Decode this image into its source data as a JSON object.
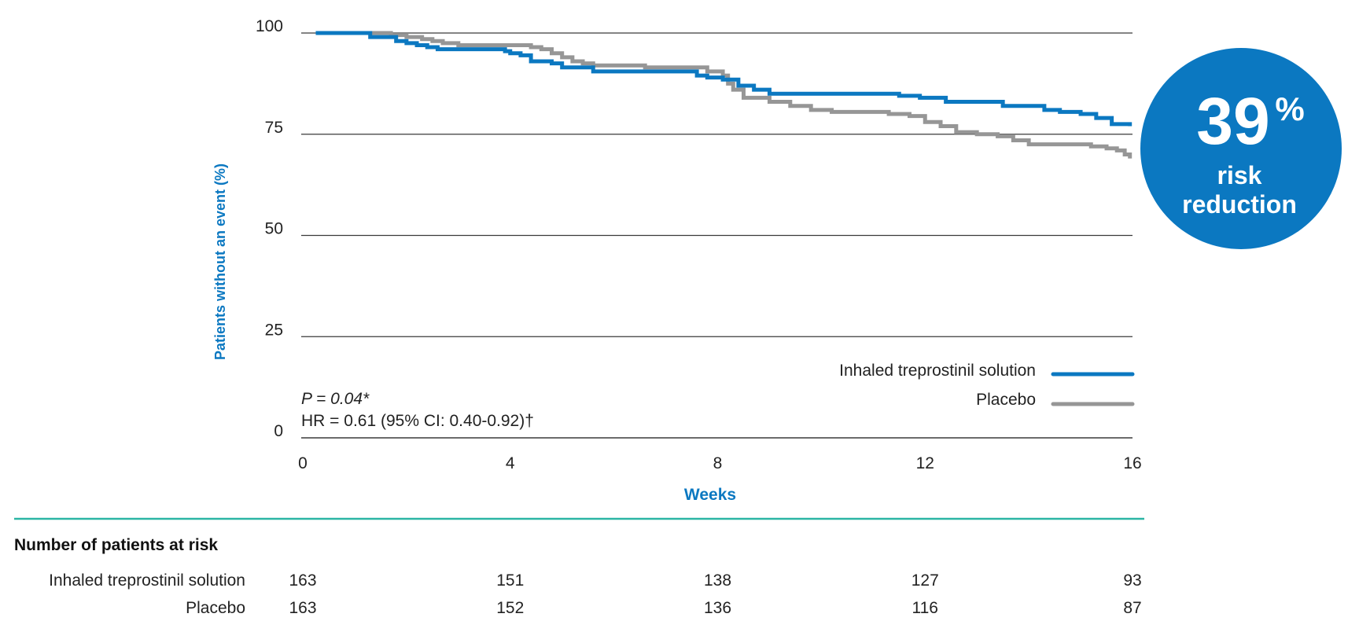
{
  "chart_data": {
    "type": "line",
    "ylabel": "Patients without an event (%)",
    "xlabel": "Weeks",
    "xlim": [
      0,
      16
    ],
    "ylim": [
      0,
      100
    ],
    "xticks": [
      0,
      4,
      8,
      12,
      16
    ],
    "yticks": [
      0,
      25,
      50,
      75,
      100
    ],
    "x_tick_labels": [
      "0",
      "4",
      "8",
      "12",
      "16"
    ],
    "y_tick_labels": [
      "0",
      "25",
      "50",
      "75",
      "100"
    ],
    "grid": "horizontal",
    "legend_position": "bottom-right",
    "colors": {
      "treatment": "#0b78c1",
      "placebo": "#969696",
      "badge": "#0b78c1",
      "divider": "#2bb5a4"
    },
    "series": [
      {
        "name": "Inhaled treprostinil solution",
        "color": "#0b78c1",
        "x": [
          0.25,
          1.2,
          1.3,
          1.6,
          1.8,
          2.0,
          2.2,
          2.4,
          2.6,
          3.8,
          3.9,
          4.0,
          4.2,
          4.4,
          4.8,
          5.0,
          5.6,
          6.6,
          7.6,
          7.8,
          8.1,
          8.4,
          8.7,
          9.0,
          11.3,
          11.5,
          11.9,
          12.4,
          13.5,
          14.0,
          14.3,
          14.6,
          15.0,
          15.3,
          15.6,
          15.95
        ],
        "y": [
          100,
          100,
          99,
          99,
          98,
          97.5,
          97,
          96.5,
          96,
          96,
          95.5,
          95,
          94.5,
          93,
          92.5,
          91.5,
          90.5,
          90.5,
          89.5,
          89,
          88.5,
          87,
          86,
          85,
          85,
          84.5,
          84,
          83,
          82,
          82,
          81,
          80.5,
          80,
          79,
          77.5,
          77
        ]
      },
      {
        "name": "Placebo",
        "color": "#969696",
        "x": [
          0.25,
          1.2,
          1.7,
          2.0,
          2.3,
          2.5,
          2.7,
          3.0,
          4.0,
          4.4,
          4.6,
          4.8,
          5.0,
          5.2,
          5.4,
          5.6,
          6.6,
          7.8,
          8.1,
          8.2,
          8.3,
          8.5,
          9.0,
          9.4,
          9.8,
          10.2,
          11.3,
          11.7,
          12.0,
          12.3,
          12.6,
          13.0,
          13.4,
          13.7,
          14.0,
          14.5,
          14.9,
          15.2,
          15.5,
          15.7,
          15.85,
          15.95
        ],
        "y": [
          100,
          100,
          99.5,
          99,
          98.5,
          98,
          97.5,
          97,
          97,
          96.5,
          96,
          95,
          94,
          93,
          92.5,
          92,
          91.5,
          90.5,
          89.5,
          87.5,
          86,
          84,
          83,
          82,
          81,
          80.5,
          80,
          79.5,
          78,
          77,
          75.5,
          75,
          74.5,
          73.5,
          72.5,
          72.5,
          72.5,
          72,
          71.5,
          71,
          70,
          69
        ]
      }
    ],
    "annotations": {
      "p_value": "P = 0.04*",
      "hazard_ratio": "HR = 0.61 (95% CI: 0.40-0.92)†"
    },
    "badge": {
      "value": "39",
      "unit": "%",
      "line1": "risk",
      "line2": "reduction"
    },
    "risk_table": {
      "title": "Number of patients at risk",
      "rows": [
        {
          "label": "Inhaled treprostinil solution",
          "values": [
            "163",
            "151",
            "138",
            "127",
            "93"
          ]
        },
        {
          "label": "Placebo",
          "values": [
            "163",
            "152",
            "136",
            "116",
            "87"
          ]
        }
      ]
    }
  }
}
